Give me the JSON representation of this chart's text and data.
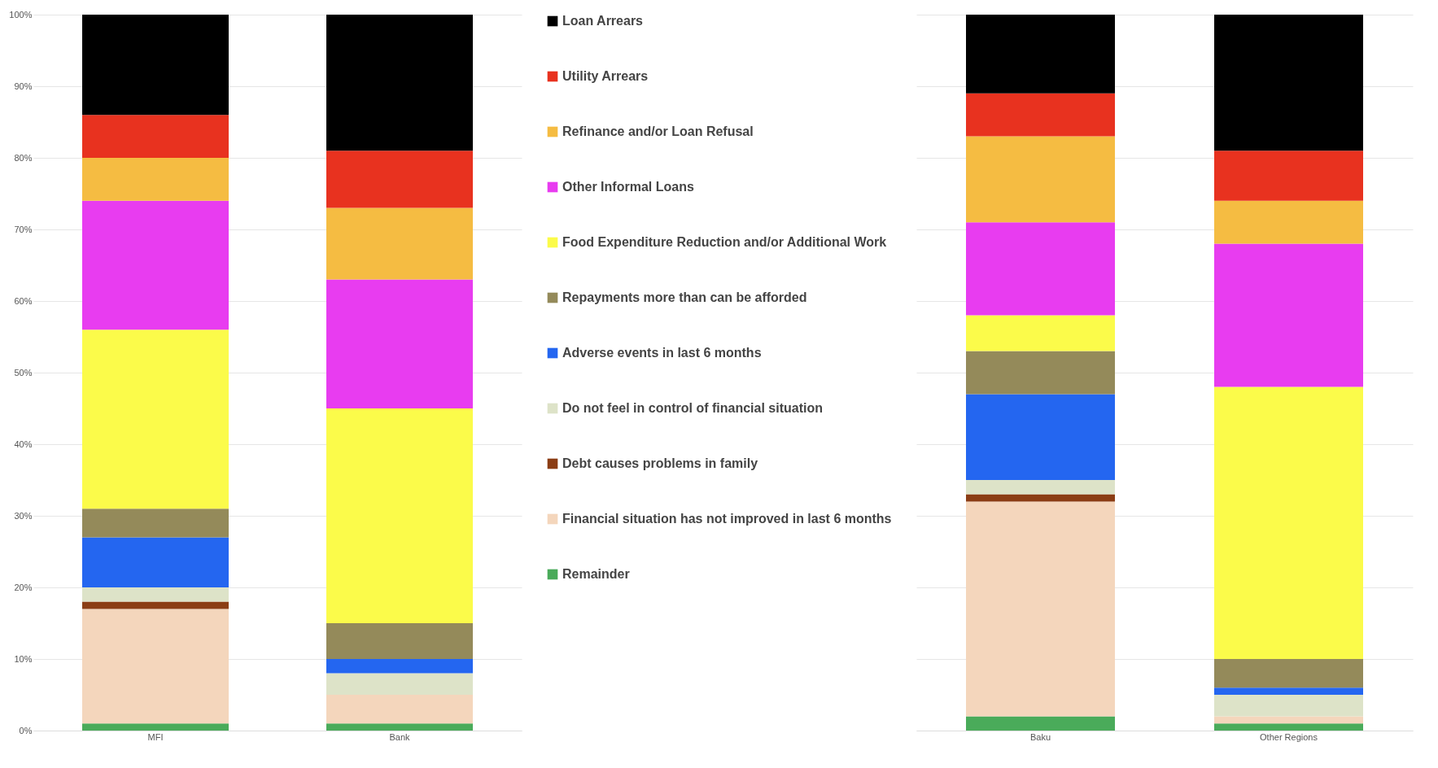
{
  "chart_data": [
    {
      "type": "bar",
      "stacked": true,
      "categories": [
        "MFI",
        "Bank"
      ],
      "ylim": [
        0,
        100
      ],
      "yticks": [
        {
          "value": 0,
          "label": "0%"
        },
        {
          "value": 10,
          "label": "10%"
        },
        {
          "value": 20,
          "label": "20%"
        },
        {
          "value": 30,
          "label": "30%"
        },
        {
          "value": 40,
          "label": "40%"
        },
        {
          "value": 50,
          "label": "50%"
        },
        {
          "value": 60,
          "label": "60%"
        },
        {
          "value": 70,
          "label": "70%"
        },
        {
          "value": 80,
          "label": "80%"
        },
        {
          "value": 90,
          "label": "90%"
        },
        {
          "value": 100,
          "label": "100%"
        }
      ],
      "grid": "y",
      "legend": "right",
      "series": [
        {
          "name": "Remainder",
          "color": "#4aab5a",
          "values": [
            1,
            1
          ]
        },
        {
          "name": "Financial situation has not improved in last 6 months",
          "color": "#f4d6bc",
          "values": [
            16,
            4
          ]
        },
        {
          "name": "Debt causes problems in family",
          "color": "#8b3d14",
          "values": [
            1,
            0
          ]
        },
        {
          "name": "Do not feel in control of financial situation",
          "color": "#dde3c8",
          "values": [
            2,
            3
          ]
        },
        {
          "name": "Adverse events in last 6 months",
          "color": "#2466f0",
          "values": [
            7,
            2
          ]
        },
        {
          "name": "Repayments more than can be afforded",
          "color": "#948a5a",
          "values": [
            4,
            5
          ]
        },
        {
          "name": "Food Expenditure Reduction and/or Additional Work",
          "color": "#fbfb4a",
          "values": [
            25,
            30
          ]
        },
        {
          "name": "Other Informal Loans",
          "color": "#e83cf0",
          "values": [
            18,
            18
          ]
        },
        {
          "name": "Refinance and/or Loan Refusal",
          "color": "#f5bc42",
          "values": [
            6,
            10
          ]
        },
        {
          "name": "Utility Arrears",
          "color": "#e8321f",
          "values": [
            6,
            8
          ]
        },
        {
          "name": "Loan Arrears",
          "color": "#000000",
          "values": [
            14,
            19
          ]
        }
      ]
    },
    {
      "type": "bar",
      "stacked": true,
      "categories": [
        "Baku",
        "Other Regions"
      ],
      "ylim": [
        0,
        100
      ],
      "yticks": [
        {
          "value": 0,
          "label": null
        },
        {
          "value": 10,
          "label": null
        },
        {
          "value": 20,
          "label": null
        },
        {
          "value": 30,
          "label": null
        },
        {
          "value": 40,
          "label": null
        },
        {
          "value": 50,
          "label": null
        },
        {
          "value": 60,
          "label": null
        },
        {
          "value": 70,
          "label": null
        },
        {
          "value": 80,
          "label": null
        },
        {
          "value": 90,
          "label": null
        },
        {
          "value": 100,
          "label": null
        }
      ],
      "grid": "y",
      "tick_labels": "x",
      "series": [
        {
          "color": "#4aab5a",
          "values": [
            2,
            1
          ]
        },
        {
          "color": "#f4d6bc",
          "values": [
            30,
            1
          ]
        },
        {
          "color": "#8b3d14",
          "values": [
            1,
            0
          ]
        },
        {
          "color": "#dde3c8",
          "values": [
            2,
            3
          ]
        },
        {
          "color": "#2466f0",
          "values": [
            12,
            1
          ]
        },
        {
          "color": "#948a5a",
          "values": [
            6,
            4
          ]
        },
        {
          "color": "#fbfb4a",
          "values": [
            5,
            38
          ]
        },
        {
          "color": "#e83cf0",
          "values": [
            13,
            20
          ]
        },
        {
          "color": "#f5bc42",
          "values": [
            12,
            6
          ]
        },
        {
          "color": "#e8321f",
          "values": [
            6,
            7
          ]
        },
        {
          "color": "#000000",
          "values": [
            11,
            19
          ]
        }
      ]
    }
  ]
}
